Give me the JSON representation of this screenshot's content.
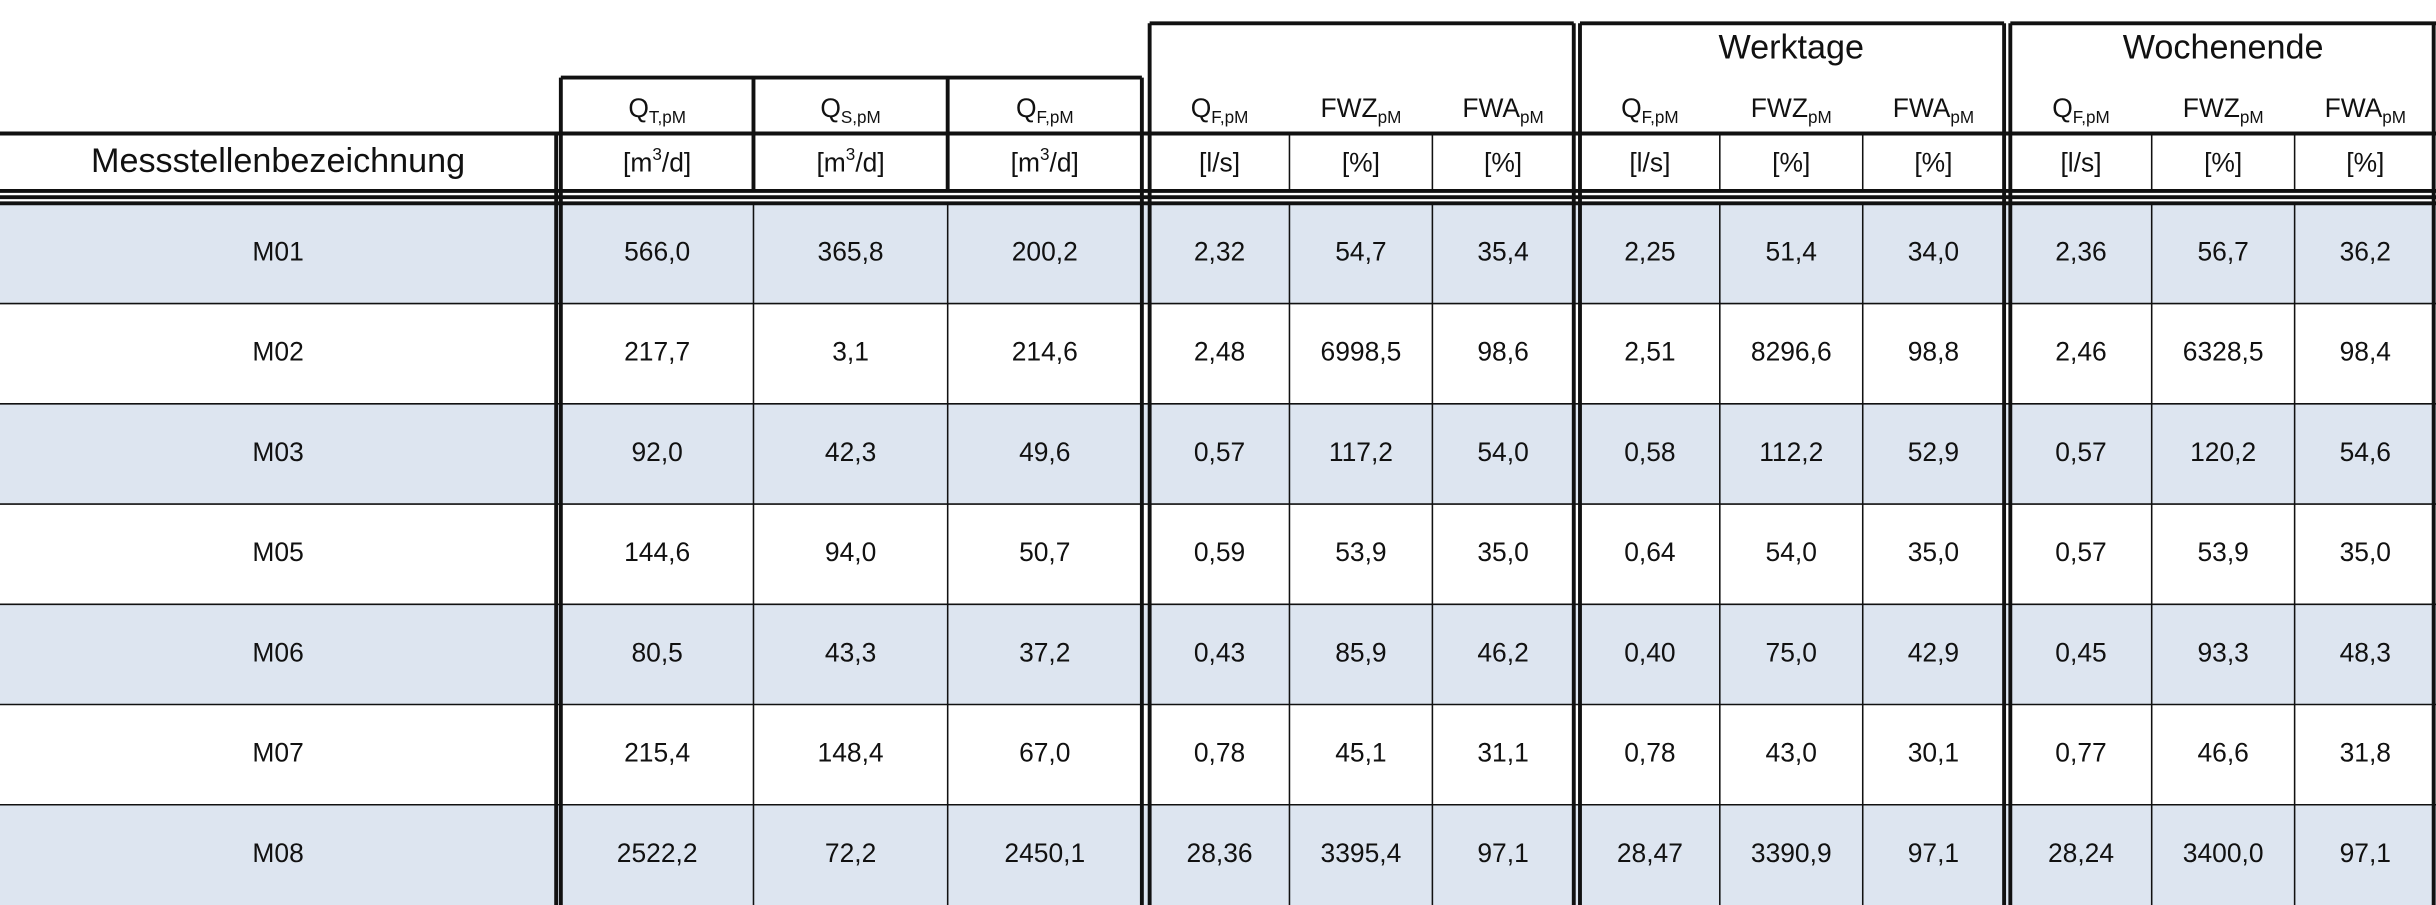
{
  "header": {
    "name_label": "Messstellenbezeichnung",
    "groups": [
      "Werktage",
      "Wochenende"
    ],
    "columns": [
      {
        "symbol": "Q",
        "sub": "T,pM",
        "unit": "[m",
        "unit_sup": "3",
        "unit_end": "/d]"
      },
      {
        "symbol": "Q",
        "sub": "S,pM",
        "unit": "[m",
        "unit_sup": "3",
        "unit_end": "/d]"
      },
      {
        "symbol": "Q",
        "sub": "F,pM",
        "unit": "[m",
        "unit_sup": "3",
        "unit_end": "/d]"
      },
      {
        "symbol": "Q",
        "sub": "F,pM",
        "unit": "[l/s]"
      },
      {
        "symbol": "FWZ",
        "sub": "pM",
        "unit": "[%]"
      },
      {
        "symbol": "FWA",
        "sub": "pM",
        "unit": "[%]"
      },
      {
        "symbol": "Q",
        "sub": "F,pM",
        "unit": "[l/s]"
      },
      {
        "symbol": "FWZ",
        "sub": "pM",
        "unit": "[%]"
      },
      {
        "symbol": "FWA",
        "sub": "pM",
        "unit": "[%]"
      },
      {
        "symbol": "Q",
        "sub": "F,pM",
        "unit": "[l/s]"
      },
      {
        "symbol": "FWZ",
        "sub": "pM",
        "unit": "[%]"
      },
      {
        "symbol": "FWA",
        "sub": "pM",
        "unit": "[%]"
      }
    ]
  },
  "table": {
    "rows": [
      [
        "M01",
        "566,0",
        "365,8",
        "200,2",
        "2,32",
        "54,7",
        "35,4",
        "2,25",
        "51,4",
        "34,0",
        "2,36",
        "56,7",
        "36,2"
      ],
      [
        "M02",
        "217,7",
        "3,1",
        "214,6",
        "2,48",
        "6998,5",
        "98,6",
        "2,51",
        "8296,6",
        "98,8",
        "2,46",
        "6328,5",
        "98,4"
      ],
      [
        "M03",
        "92,0",
        "42,3",
        "49,6",
        "0,57",
        "117,2",
        "54,0",
        "0,58",
        "112,2",
        "52,9",
        "0,57",
        "120,2",
        "54,6"
      ],
      [
        "M05",
        "144,6",
        "94,0",
        "50,7",
        "0,59",
        "53,9",
        "35,0",
        "0,64",
        "54,0",
        "35,0",
        "0,57",
        "53,9",
        "35,0"
      ],
      [
        "M06",
        "80,5",
        "43,3",
        "37,2",
        "0,43",
        "85,9",
        "46,2",
        "0,40",
        "75,0",
        "42,9",
        "0,45",
        "93,3",
        "48,3"
      ],
      [
        "M07",
        "215,4",
        "148,4",
        "67,0",
        "0,78",
        "45,1",
        "31,1",
        "0,78",
        "43,0",
        "30,1",
        "0,77",
        "46,6",
        "31,8"
      ],
      [
        "M08",
        "2522,2",
        "72,2",
        "2450,1",
        "28,36",
        "3395,4",
        "97,1",
        "28,47",
        "3390,9",
        "97,1",
        "28,24",
        "3400,0",
        "97,1"
      ]
    ]
  }
}
